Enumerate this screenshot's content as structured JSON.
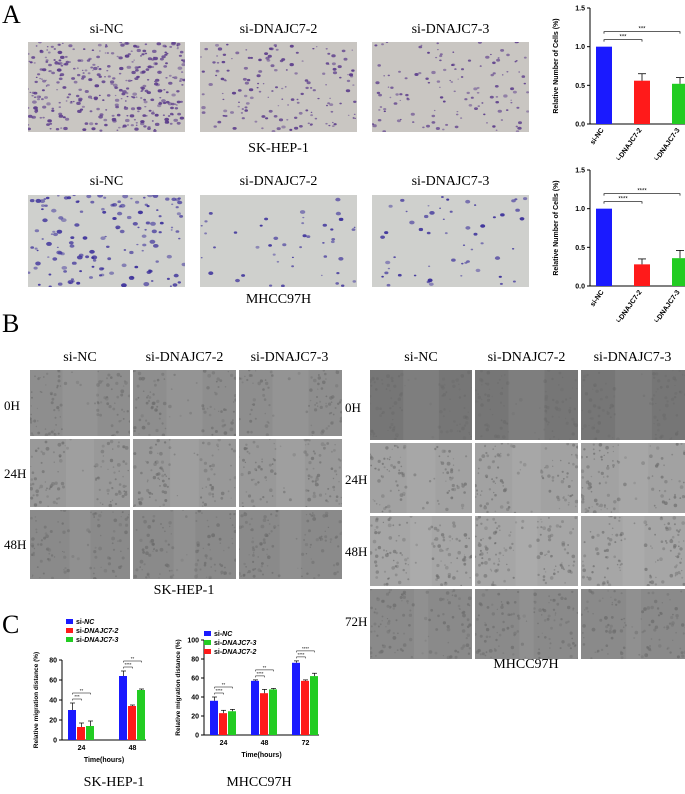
{
  "panelA": {
    "letter": "A",
    "col_labels": [
      "si-NC",
      "si-DNAJC7-2",
      "si-DNAJC7-3"
    ],
    "row1_caption": "SK-HEP-1",
    "row2_caption": "MHCC97H"
  },
  "panelB": {
    "letter": "B",
    "left_cols": [
      "si-NC",
      "si-DNAJC7-2",
      "si-DNAJC7-3"
    ],
    "right_cols": [
      "si-NC",
      "si-DNAJC7-2",
      "si-DNAJC7-3"
    ],
    "left_rows": [
      "0H",
      "24H",
      "48H"
    ],
    "right_rows": [
      "0H",
      "24H",
      "48H",
      "72H"
    ],
    "left_caption": "SK-HEP-1",
    "right_caption": "MHCC97H"
  },
  "panelC": {
    "letter": "C",
    "left_caption": "SK-HEP-1",
    "right_caption": "MHCC97H"
  },
  "colors": {
    "blue": "#1a1aff",
    "red": "#ff1a1a",
    "green": "#22cc22",
    "stain_purple": "#5a3a8a",
    "stain_blue": "#3a2e9a"
  },
  "chart_data": [
    {
      "type": "bar",
      "ylabel": "Relative Number of Cells (%)",
      "categories": [
        "si-NC",
        "si-DNAJC7-2",
        "si-DNAJC7-3"
      ],
      "values": [
        1.0,
        0.56,
        0.52
      ],
      "errors": [
        0.0,
        0.09,
        0.08
      ],
      "colors": [
        "#1a1aff",
        "#ff1a1a",
        "#22cc22"
      ],
      "ylim": [
        0,
        1.5
      ],
      "yticks": [
        "0.0",
        "0.5",
        "1.0",
        "1.5"
      ],
      "significance": [
        "***",
        "***"
      ]
    },
    {
      "type": "bar",
      "ylabel": "Relative Number of Cells (%)",
      "categories": [
        "si-NC",
        "si-DNAJC7-2",
        "si-DNAJC7-3"
      ],
      "values": [
        1.0,
        0.28,
        0.36
      ],
      "errors": [
        0.0,
        0.07,
        0.1
      ],
      "colors": [
        "#1a1aff",
        "#ff1a1a",
        "#22cc22"
      ],
      "ylim": [
        0,
        1.5
      ],
      "yticks": [
        "0.0",
        "0.5",
        "1.0",
        "1.5"
      ],
      "significance": [
        "****",
        "****"
      ]
    },
    {
      "type": "bar",
      "xlabel": "Time(hours)",
      "ylabel": "Relative migration distance (%)",
      "categories": [
        "24",
        "48"
      ],
      "series": [
        {
          "name": "si-NC",
          "values": [
            30,
            64
          ],
          "errors": [
            7,
            5
          ],
          "color": "#1a1aff"
        },
        {
          "name": "si-DNAJC7-2",
          "values": [
            13,
            34
          ],
          "errors": [
            4,
            1
          ],
          "color": "#ff1a1a"
        },
        {
          "name": "si-DNAJC7-3",
          "values": [
            14,
            50
          ],
          "errors": [
            5,
            1
          ],
          "color": "#22cc22"
        }
      ],
      "legend": [
        {
          "prefix": "si-",
          "suffix": "NC"
        },
        {
          "prefix": "si-",
          "suffix": "DNAJC7-2"
        },
        {
          "prefix": "si-",
          "suffix": "DNAJC7-3"
        }
      ],
      "ylim": [
        0,
        80
      ],
      "yticks": [
        "0",
        "20",
        "40",
        "60",
        "80"
      ],
      "significance": [
        [
          "***",
          "**"
        ],
        [
          "****",
          "**"
        ]
      ]
    },
    {
      "type": "bar",
      "xlabel": "Time(hours)",
      "ylabel": "Relative migration distance (%)",
      "categories": [
        "24",
        "48",
        "72"
      ],
      "series": [
        {
          "name": "si-NC",
          "values": [
            36,
            57,
            76
          ],
          "errors": [
            4,
            1,
            2
          ],
          "color": "#1a1aff"
        },
        {
          "name": "si-DNAJC7-3",
          "values": [
            25,
            48,
            62
          ],
          "errors": [
            2,
            1,
            3
          ],
          "color": "#22cc22"
        },
        {
          "name": "si-DNAJC7-2",
          "values": [
            23,
            44,
            57
          ],
          "errors": [
            3,
            4,
            1
          ],
          "color": "#ff1a1a"
        }
      ],
      "bar_order": [
        "si-NC",
        "si-DNAJC7-2",
        "si-DNAJC7-3"
      ],
      "legend": [
        {
          "prefix": "si-",
          "suffix": "NC"
        },
        {
          "prefix": "si-",
          "suffix": "DNAJC7-3"
        },
        {
          "prefix": "si-",
          "suffix": "DNAJC7-2"
        }
      ],
      "ylim": [
        0,
        100
      ],
      "yticks": [
        "0",
        "20",
        "40",
        "60",
        "80",
        "100"
      ],
      "significance": [
        [
          "****",
          "**"
        ],
        [
          "****",
          "**"
        ],
        [
          "****",
          "****"
        ]
      ]
    }
  ]
}
